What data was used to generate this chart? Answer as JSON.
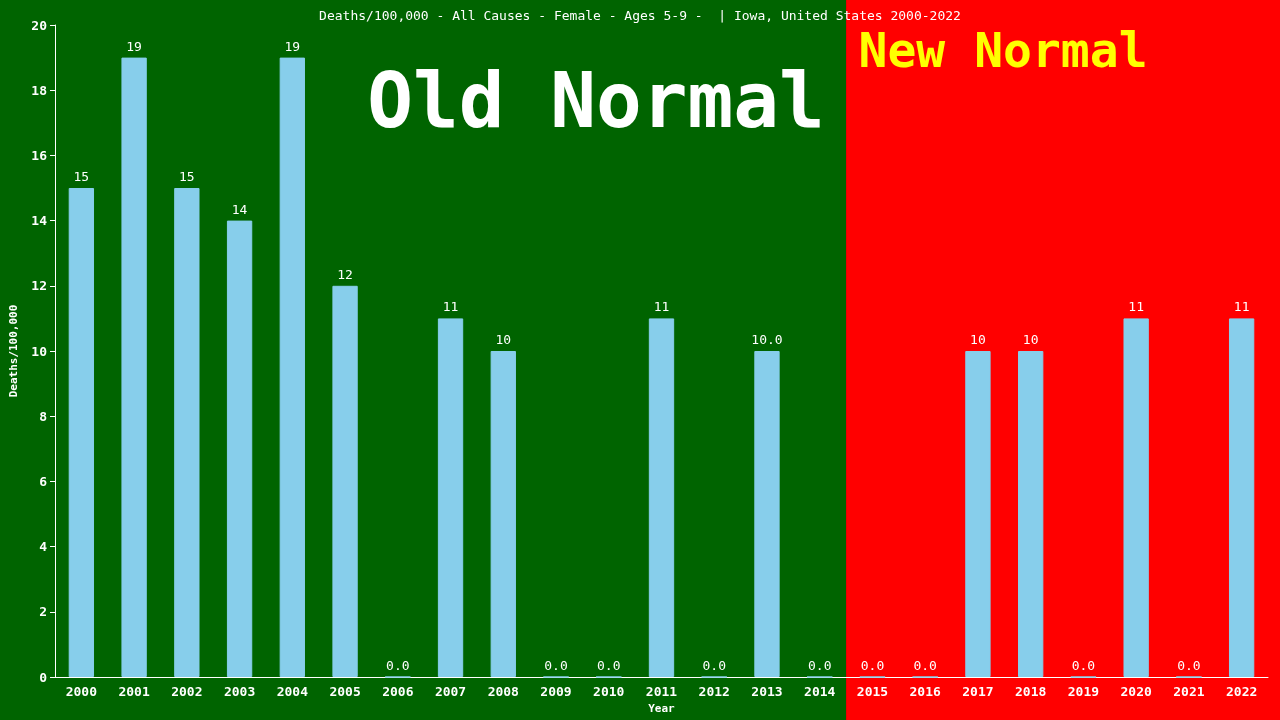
{
  "chart_data": {
    "type": "bar",
    "title": "Deaths/100,000 - All Causes - Female - Ages 5-9 -  | Iowa, United States 2000-2022",
    "xlabel": "Year",
    "ylabel": "Deaths/100,000",
    "categories": [
      "2000",
      "2001",
      "2002",
      "2003",
      "2004",
      "2005",
      "2006",
      "2007",
      "2008",
      "2009",
      "2010",
      "2011",
      "2012",
      "2013",
      "2014",
      "2015",
      "2016",
      "2017",
      "2018",
      "2019",
      "2020",
      "2021",
      "2022"
    ],
    "values": [
      15,
      19,
      15,
      14,
      19,
      12,
      0,
      11,
      10,
      0,
      0,
      11,
      0,
      10,
      0,
      0,
      0,
      10,
      10,
      0,
      11,
      0,
      11
    ],
    "value_labels": [
      "15",
      "19",
      "15",
      "14",
      "19",
      "12",
      "0.0",
      "11",
      "10",
      "0.0",
      "0.0",
      "11",
      "0.0",
      "10.0",
      "0.0",
      "0.0",
      "0.0",
      "10",
      "10",
      "0.0",
      "11",
      "0.0",
      "11"
    ],
    "color": "#87ceeb",
    "ylim": [
      0,
      20
    ],
    "yticks": [
      0,
      2,
      4,
      6,
      8,
      10,
      12,
      14,
      16,
      18,
      20
    ],
    "bands": [
      {
        "axis": "x",
        "from": "2000",
        "to": "2014",
        "label": "Old Normal",
        "color": "#006400"
      },
      {
        "axis": "x",
        "from": "2015",
        "to": "2022",
        "label": "New Normal",
        "color": "#ff0000"
      }
    ]
  }
}
